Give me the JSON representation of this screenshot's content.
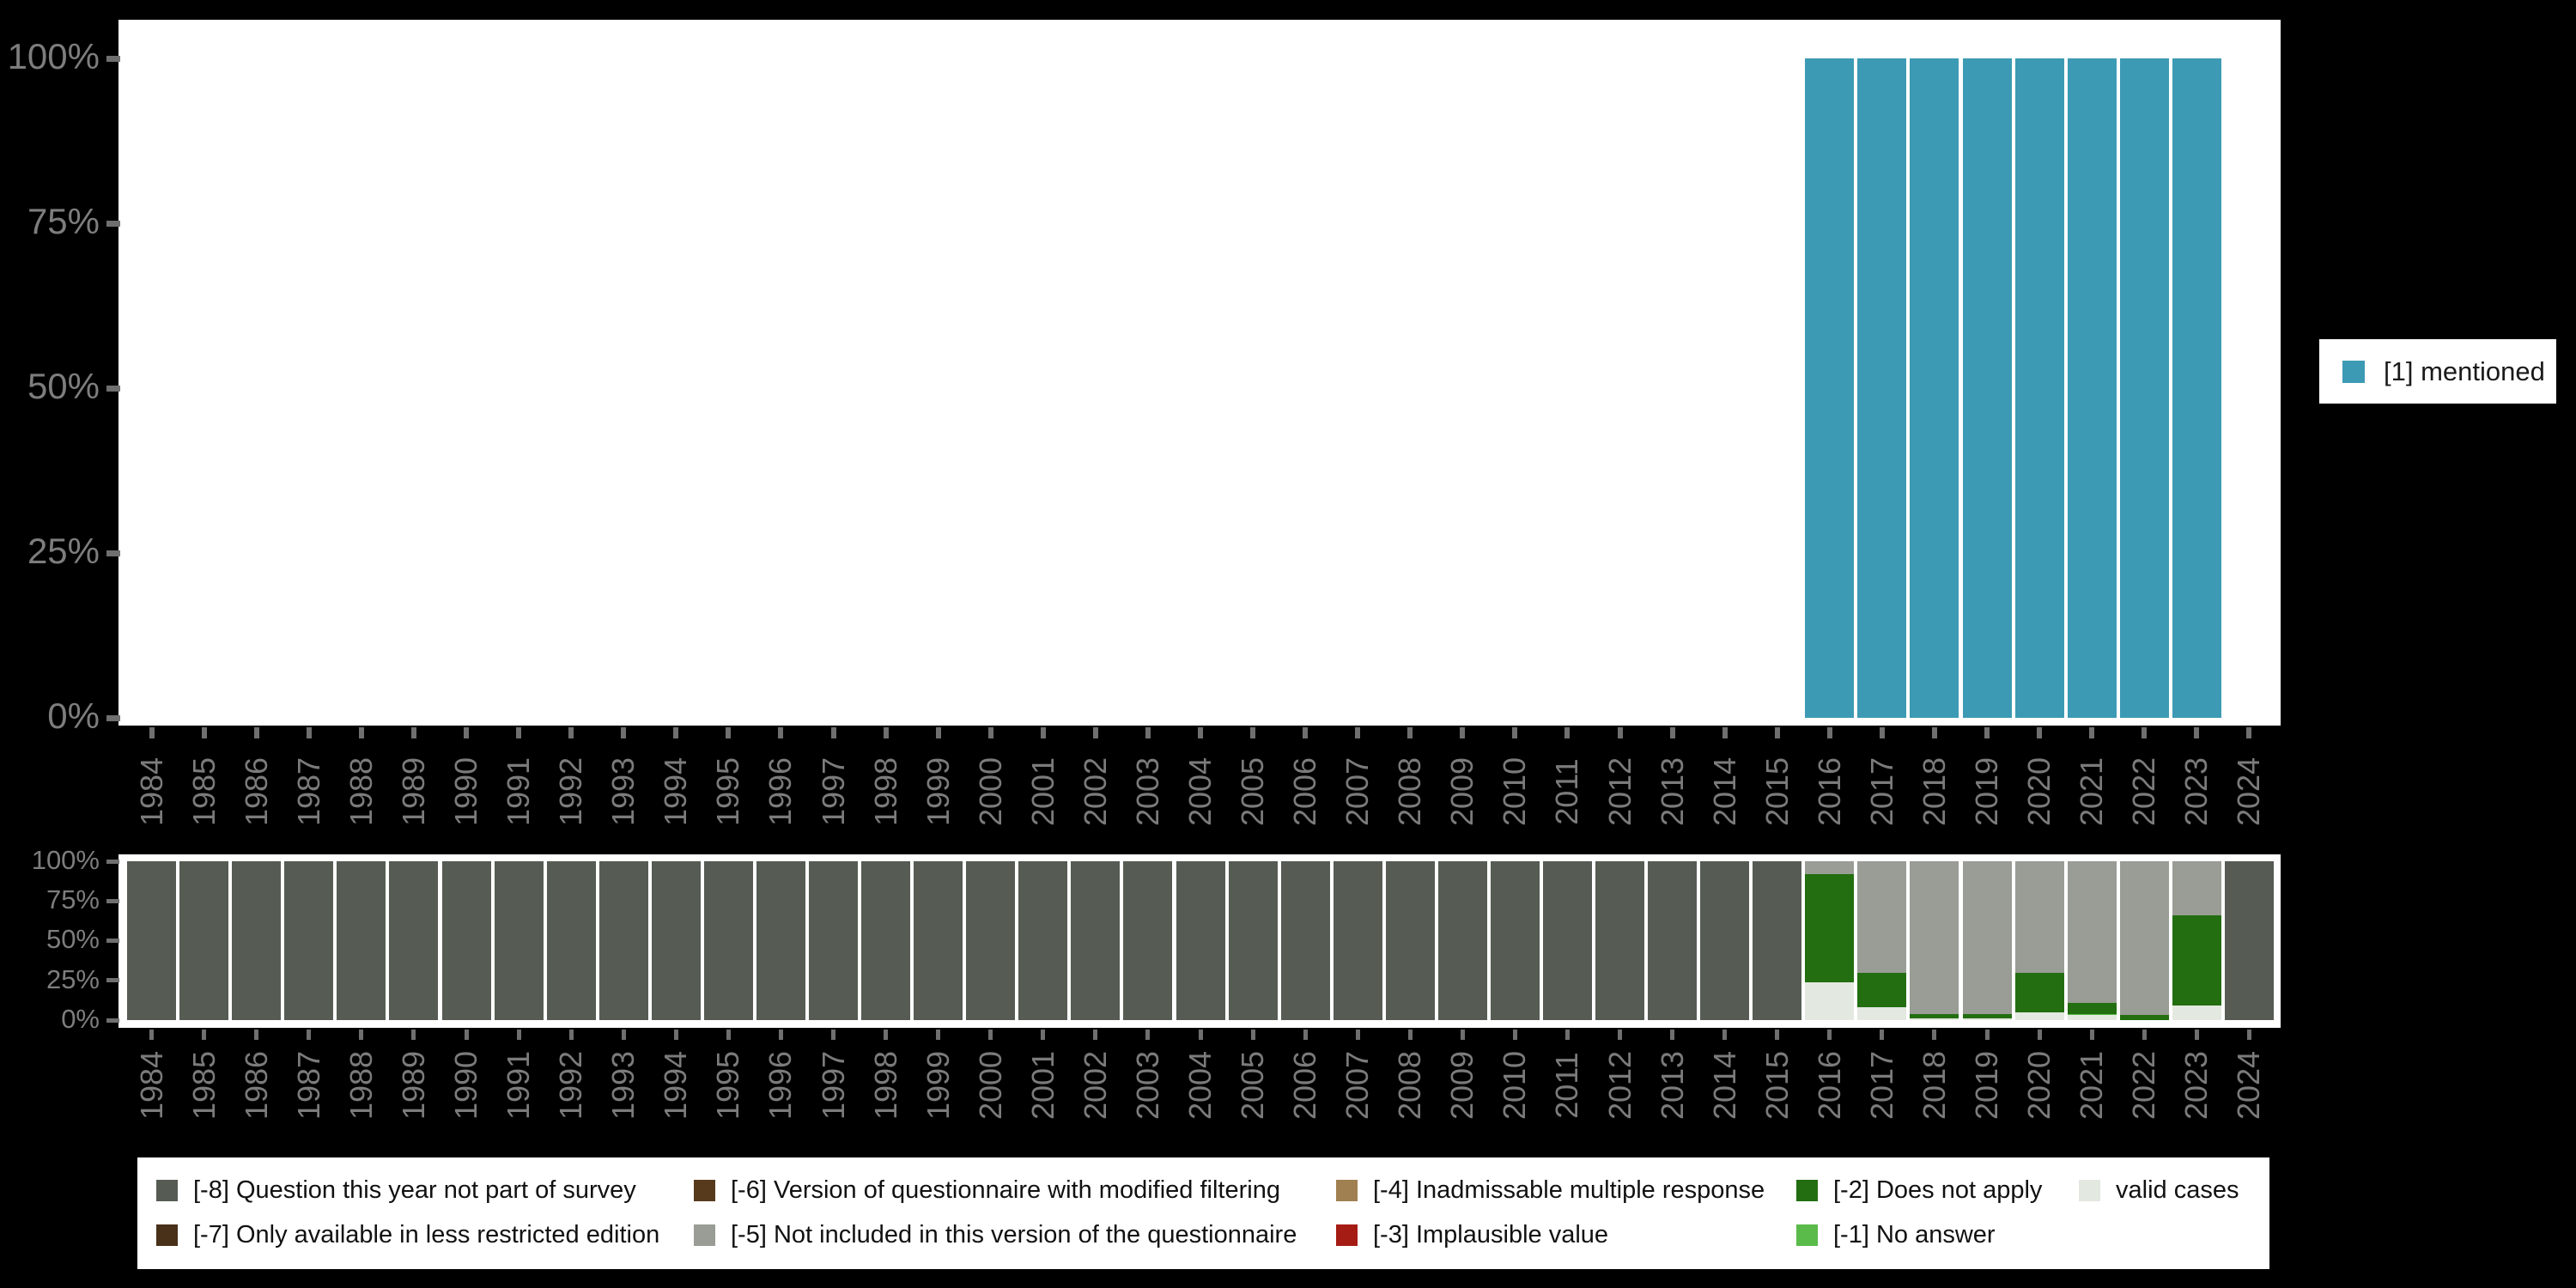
{
  "background_color": "#000000",
  "plot_background_color": "#ffffff",
  "axis_text_color": "#7d7d7d",
  "chart_data": [
    {
      "id": "variable-distribution",
      "type": "bar",
      "stacked": true,
      "title": "",
      "xlabel": "",
      "ylabel": "",
      "ylim": [
        0,
        100
      ],
      "grid": false,
      "y_tick_labels": [
        "100%",
        "75%",
        "50%",
        "25%",
        "0%"
      ],
      "categories": [
        "1984",
        "1985",
        "1986",
        "1987",
        "1988",
        "1989",
        "1990",
        "1991",
        "1992",
        "1993",
        "1994",
        "1995",
        "1996",
        "1997",
        "1998",
        "1999",
        "2000",
        "2001",
        "2002",
        "2003",
        "2004",
        "2005",
        "2006",
        "2007",
        "2008",
        "2009",
        "2010",
        "2011",
        "2012",
        "2013",
        "2014",
        "2015",
        "2016",
        "2017",
        "2018",
        "2019",
        "2020",
        "2021",
        "2022",
        "2023",
        "2024"
      ],
      "series": [
        {
          "name": "[1] mentioned",
          "color": "#3d9ab4",
          "values": [
            null,
            null,
            null,
            null,
            null,
            null,
            null,
            null,
            null,
            null,
            null,
            null,
            null,
            null,
            null,
            null,
            null,
            null,
            null,
            null,
            null,
            null,
            null,
            null,
            null,
            null,
            null,
            null,
            null,
            null,
            null,
            null,
            100,
            100,
            100,
            100,
            100,
            100,
            100,
            100,
            null
          ]
        }
      ],
      "legend": {
        "position": "right",
        "entries": [
          {
            "label": "[1] mentioned",
            "color": "#3d9ab4"
          }
        ]
      }
    },
    {
      "id": "missing-values",
      "type": "bar",
      "stacked": true,
      "title": "",
      "xlabel": "",
      "ylabel": "",
      "ylim": [
        0,
        100
      ],
      "grid": false,
      "y_tick_labels": [
        "100%",
        "75%",
        "50%",
        "25%",
        "0%"
      ],
      "categories": [
        "1984",
        "1985",
        "1986",
        "1987",
        "1988",
        "1989",
        "1990",
        "1991",
        "1992",
        "1993",
        "1994",
        "1995",
        "1996",
        "1997",
        "1998",
        "1999",
        "2000",
        "2001",
        "2002",
        "2003",
        "2004",
        "2005",
        "2006",
        "2007",
        "2008",
        "2009",
        "2010",
        "2011",
        "2012",
        "2013",
        "2014",
        "2015",
        "2016",
        "2017",
        "2018",
        "2019",
        "2020",
        "2021",
        "2022",
        "2023",
        "2024"
      ],
      "series": [
        {
          "name": "valid cases",
          "color": "#e3e8e0",
          "values": [
            0,
            0,
            0,
            0,
            0,
            0,
            0,
            0,
            0,
            0,
            0,
            0,
            0,
            0,
            0,
            0,
            0,
            0,
            0,
            0,
            0,
            0,
            0,
            0,
            0,
            0,
            0,
            0,
            0,
            0,
            0,
            0,
            24,
            8,
            1,
            1,
            5,
            3,
            0,
            9,
            0
          ]
        },
        {
          "name": "[-1] No answer",
          "color": "#5abb4a",
          "values": [
            0,
            0,
            0,
            0,
            0,
            0,
            0,
            0,
            0,
            0,
            0,
            0,
            0,
            0,
            0,
            0,
            0,
            0,
            0,
            0,
            0,
            0,
            0,
            0,
            0,
            0,
            0,
            0,
            0,
            0,
            0,
            0,
            0,
            0,
            0,
            0,
            0,
            1,
            0,
            0,
            0
          ]
        },
        {
          "name": "[-2] Does not apply",
          "color": "#226e10",
          "values": [
            0,
            0,
            0,
            0,
            0,
            0,
            0,
            0,
            0,
            0,
            0,
            0,
            0,
            0,
            0,
            0,
            0,
            0,
            0,
            0,
            0,
            0,
            0,
            0,
            0,
            0,
            0,
            0,
            0,
            0,
            0,
            0,
            68,
            22,
            3,
            3,
            25,
            7,
            3,
            57,
            0
          ]
        },
        {
          "name": "[-5] Not included in this version of the questionnaire",
          "color": "#999d95",
          "values": [
            0,
            0,
            0,
            0,
            0,
            0,
            0,
            0,
            0,
            0,
            0,
            0,
            0,
            0,
            0,
            0,
            0,
            0,
            0,
            0,
            0,
            0,
            0,
            0,
            0,
            0,
            0,
            0,
            0,
            0,
            0,
            0,
            8,
            70,
            96,
            96,
            70,
            89,
            97,
            34,
            0
          ]
        },
        {
          "name": "[-8] Question this year not part of survey",
          "color": "#565c53",
          "values": [
            100,
            100,
            100,
            100,
            100,
            100,
            100,
            100,
            100,
            100,
            100,
            100,
            100,
            100,
            100,
            100,
            100,
            100,
            100,
            100,
            100,
            100,
            100,
            100,
            100,
            100,
            100,
            100,
            100,
            100,
            100,
            100,
            0,
            0,
            0,
            0,
            0,
            0,
            0,
            0,
            100
          ]
        }
      ],
      "legend": {
        "position": "bottom",
        "entries": [
          {
            "label": "[-8] Question this year not part of survey",
            "color": "#565c53",
            "row": 0,
            "col": 0
          },
          {
            "label": "[-7] Only available in less restricted edition",
            "color": "#483019",
            "row": 1,
            "col": 0
          },
          {
            "label": "[-6] Version of questionnaire with modified filtering",
            "color": "#573a1c",
            "row": 0,
            "col": 1
          },
          {
            "label": "[-5] Not included in this version of the questionnaire",
            "color": "#999d95",
            "row": 1,
            "col": 1
          },
          {
            "label": "[-4] Inadmissable multiple response",
            "color": "#a08050",
            "row": 0,
            "col": 2
          },
          {
            "label": "[-3] Implausible value",
            "color": "#a51c15",
            "row": 1,
            "col": 2
          },
          {
            "label": "[-2] Does not apply",
            "color": "#226e10",
            "row": 0,
            "col": 3
          },
          {
            "label": "[-1] No answer",
            "color": "#5abb4a",
            "row": 1,
            "col": 3
          },
          {
            "label": "valid cases",
            "color": "#e3e8e0",
            "row": 0,
            "col": 4
          }
        ]
      }
    }
  ]
}
